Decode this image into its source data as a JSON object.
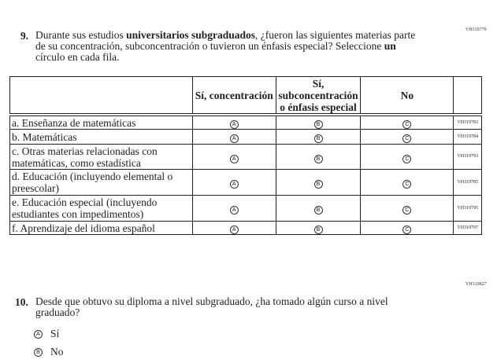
{
  "q9": {
    "code": "VH319779",
    "number": "9.",
    "text_parts": [
      "Durante sus estudios ",
      "universitarios subgraduados",
      ", ¿fueron las siguientes materias parte de su concentración, subconcentración o tuvieron un énfasis especial? Seleccione ",
      "un",
      " círculo en cada fila."
    ],
    "columns": [
      "Sí, concentración",
      "Sí, subconcentración o énfasis especial",
      "No"
    ],
    "bubbles": [
      "A",
      "B",
      "C"
    ],
    "rows": [
      {
        "label": "a.  Enseñanza de matemáticas",
        "code": "VH319783"
      },
      {
        "label": "b.  Matemáticas",
        "code": "VH319784"
      },
      {
        "label": "c.  Otras materias relacionadas con matemáticas, como estadística",
        "code": "VH319793"
      },
      {
        "label": "d.  Educación (incluyendo elemental o preescolar)",
        "code": "VH319785"
      },
      {
        "label": "e.  Educación especial (incluyendo estudiantes con impedimentos)",
        "code": "VH319795"
      },
      {
        "label": "f.  Aprendizaje del idioma español",
        "code": "VH319797"
      }
    ]
  },
  "q10": {
    "code": "VH319827",
    "number": "10.",
    "text": "Desde que obtuvo su diploma a nivel subgraduado, ¿ha tomado algún curso a nivel graduado?",
    "options": [
      {
        "bubble": "A",
        "label": "Sí"
      },
      {
        "bubble": "B",
        "label": "No"
      }
    ]
  }
}
